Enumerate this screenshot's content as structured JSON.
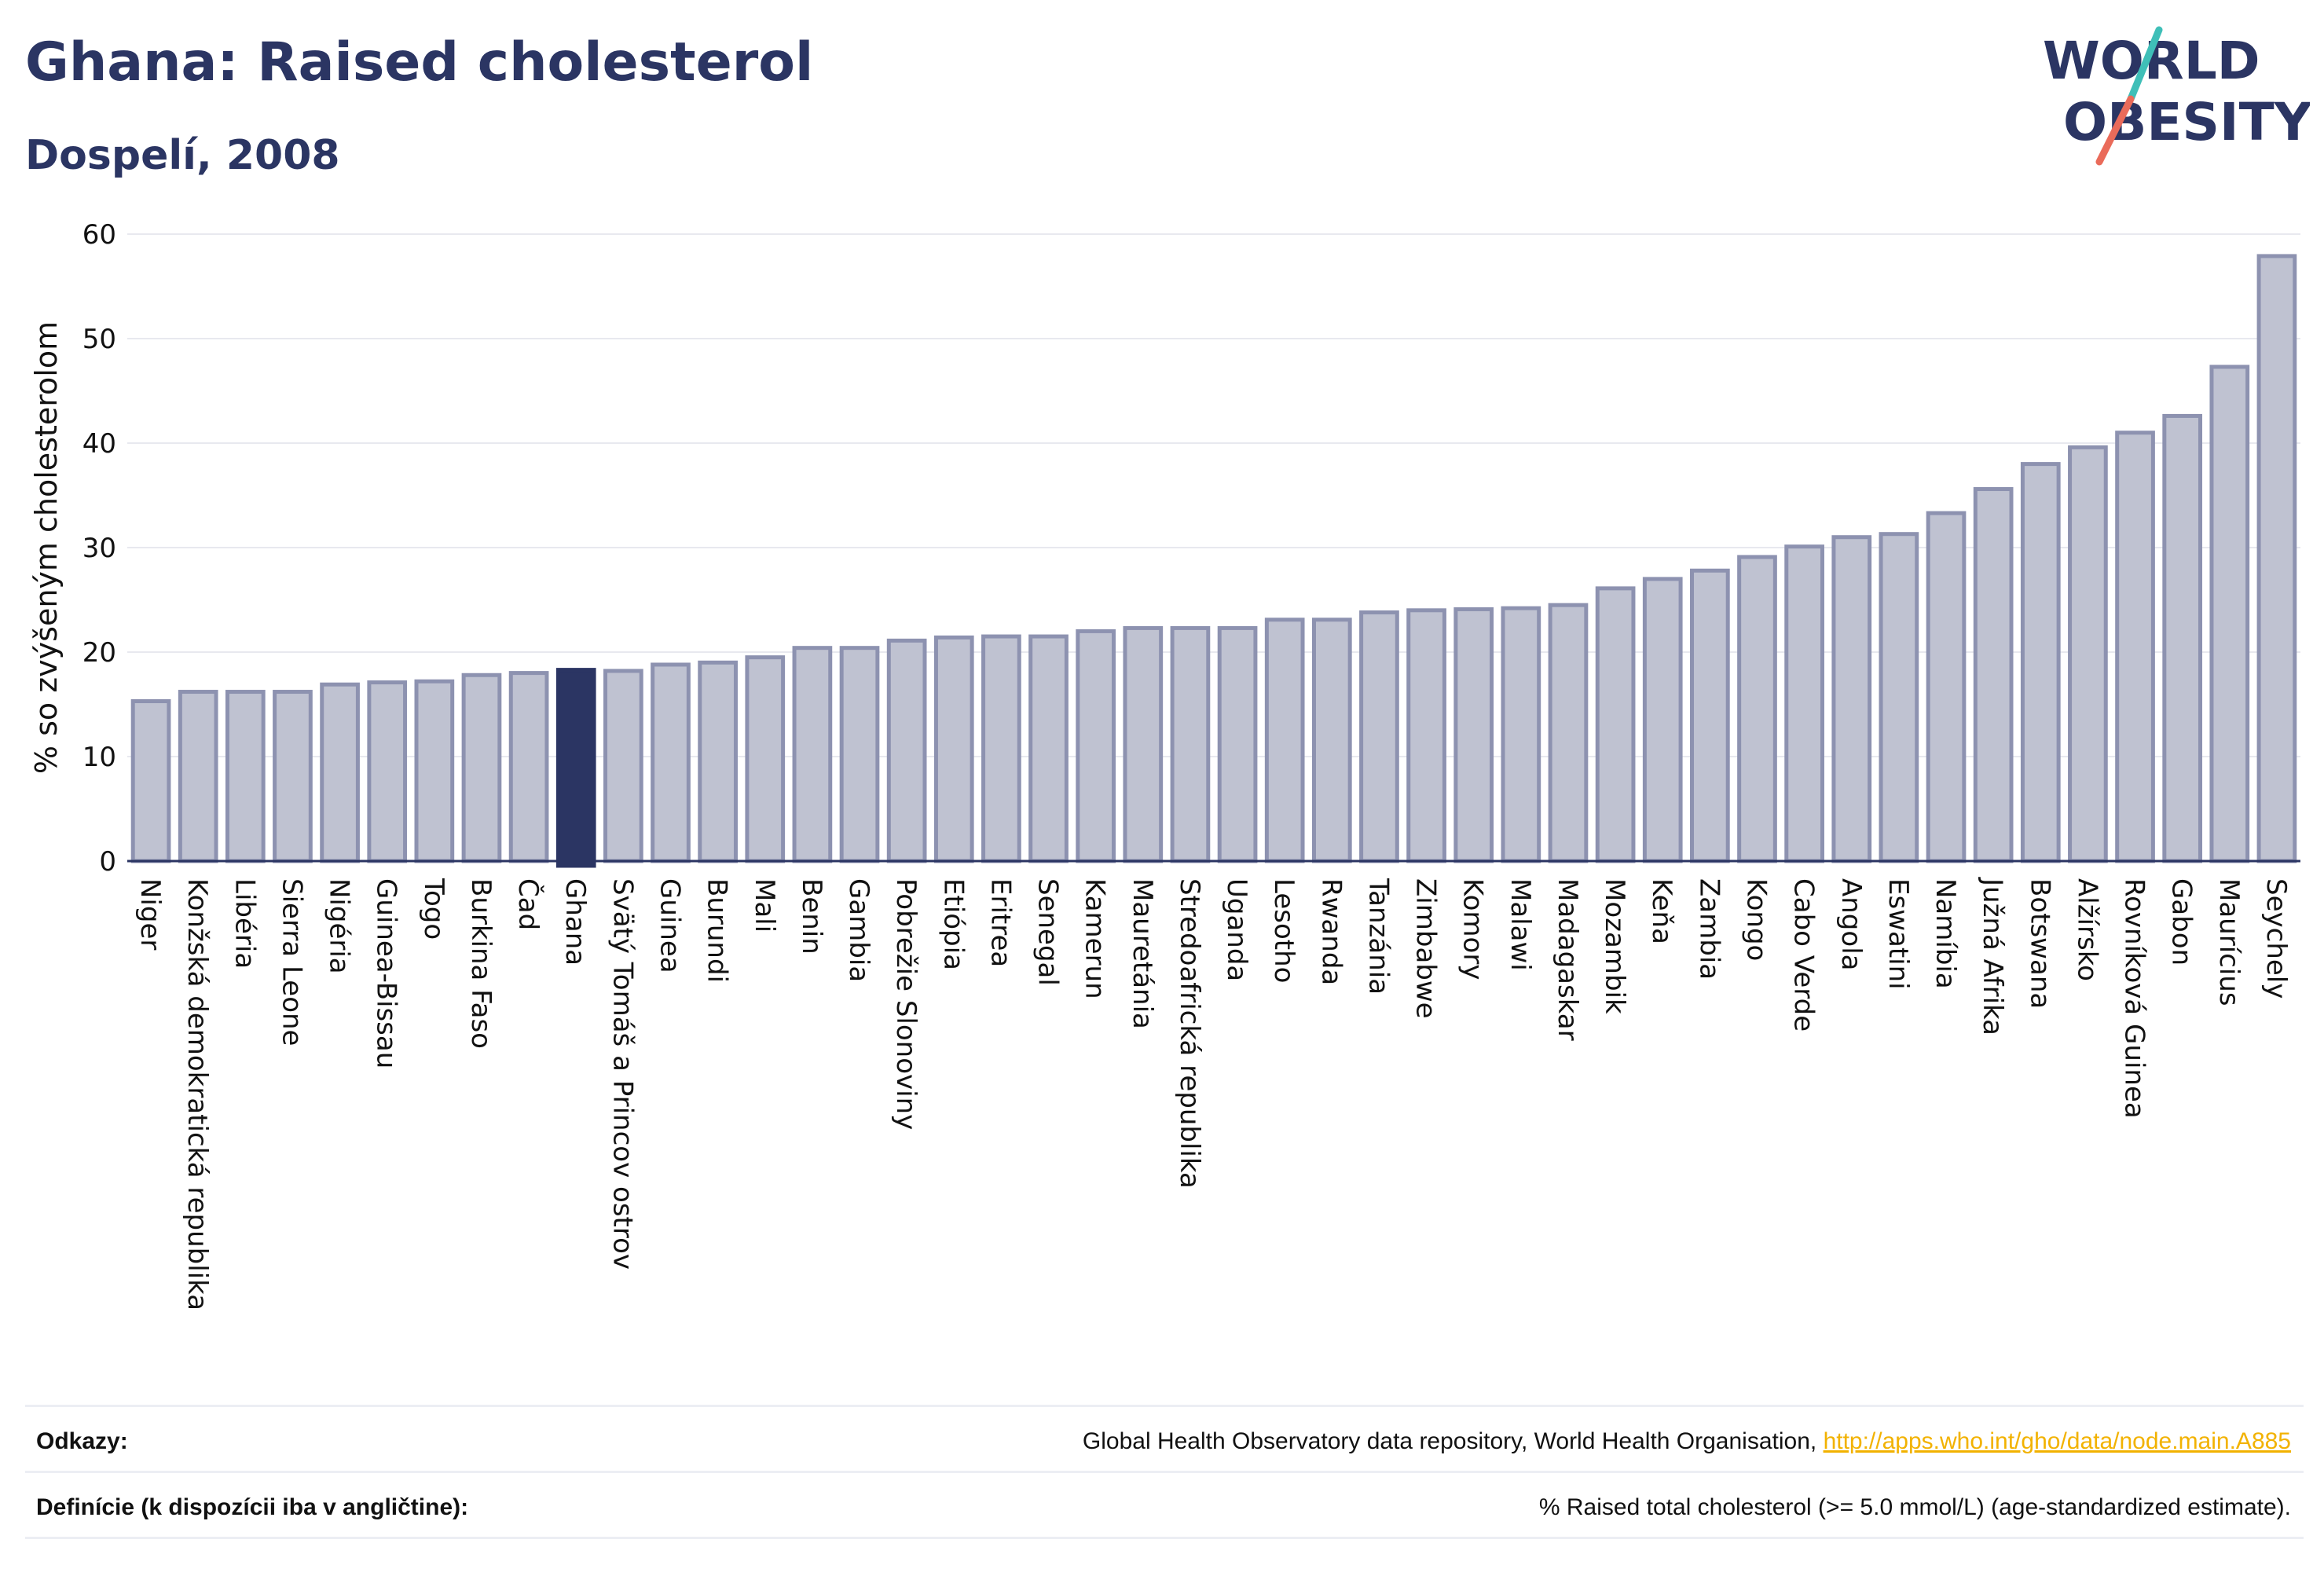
{
  "header": {
    "title": "Ghana: Raised cholesterol",
    "subtitle": "Dospelí, 2008",
    "logo_line1": "WORLD",
    "logo_line2": "OBESITY"
  },
  "colors": {
    "highlight": "#2b3563",
    "bar_fill": "#bfc2d1",
    "bar_stroke": "#8d92b0",
    "title": "#2b3563",
    "link": "#f2b200",
    "logo_slash_teal": "#3fbfb8",
    "logo_slash_coral": "#ea6b5a"
  },
  "chart_data": {
    "type": "bar",
    "ylabel": "% so zvýšeným cholesterolom",
    "ylim": [
      0,
      60
    ],
    "yticks": [
      0,
      10,
      20,
      30,
      40,
      50,
      60
    ],
    "grid": true,
    "highlight": "Ghana",
    "categories": [
      "Niger",
      "Konžská demokratická republika",
      "Libéria",
      "Sierra Leone",
      "Nigéria",
      "Guinea-Bissau",
      "Togo",
      "Burkina Faso",
      "Čad",
      "Ghana",
      "Svätý Tomáš a Princov ostrov",
      "Guinea",
      "Burundi",
      "Mali",
      "Benin",
      "Gambia",
      "Pobrežie Slonoviny",
      "Etiópia",
      "Eritrea",
      "Senegal",
      "Kamerun",
      "Mauretánia",
      "Stredoafrická republika",
      "Uganda",
      "Lesotho",
      "Rwanda",
      "Tanzánia",
      "Zimbabwe",
      "Komory",
      "Malawi",
      "Madagaskar",
      "Mozambik",
      "Keňa",
      "Zambia",
      "Kongo",
      "Cabo Verde",
      "Angola",
      "Eswatini",
      "Namíbia",
      "Južná Afrika",
      "Botswana",
      "Alžírsko",
      "Rovníková Guinea",
      "Gabon",
      "Maurícius",
      "Seychely"
    ],
    "values": [
      15.3,
      16.2,
      16.2,
      16.2,
      16.9,
      17.1,
      17.2,
      17.8,
      18.0,
      18.3,
      18.2,
      18.8,
      19.0,
      19.5,
      20.4,
      20.4,
      21.1,
      21.4,
      21.5,
      21.5,
      22.0,
      22.3,
      22.3,
      22.3,
      23.1,
      23.1,
      23.8,
      24.0,
      24.1,
      24.2,
      24.5,
      26.1,
      27.0,
      27.8,
      29.1,
      30.1,
      31.0,
      31.3,
      33.3,
      35.6,
      38.0,
      39.6,
      41.0,
      42.6,
      47.3,
      57.9
    ]
  },
  "footer": {
    "references_label": "Odkazy:",
    "references_text": "Global Health Observatory data repository, World Health Organisation, ",
    "references_link": "http://apps.who.int/gho/data/node.main.A885",
    "definitions_label": "Definície (k dispozícii iba v angličtine):",
    "definitions_text": "% Raised total cholesterol (>= 5.0 mmol/L) (age-standardized estimate)."
  }
}
